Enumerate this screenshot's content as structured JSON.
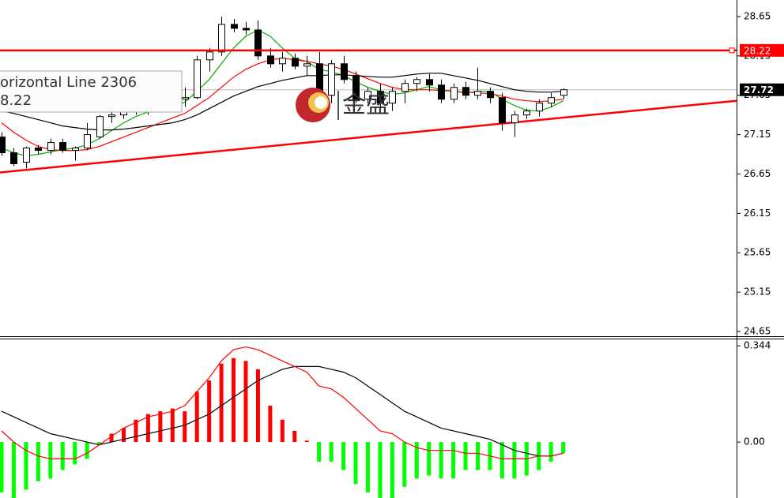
{
  "chart_data": [
    {
      "type": "candlestick",
      "xlim": [
        -0.13,
        60.2
      ],
      "ylim": [
        24.6,
        28.86
      ],
      "yticks": [
        24.65,
        25.15,
        25.65,
        26.15,
        26.65,
        27.15,
        27.65,
        28.15,
        28.65
      ],
      "open": [
        27.12,
        26.92,
        26.8,
        26.98,
        26.95,
        27.05,
        26.95,
        26.98,
        27.12,
        27.38,
        27.4,
        27.45,
        27.45,
        27.5,
        27.55,
        27.6,
        27.62,
        28.1,
        28.2,
        28.55,
        28.5,
        28.48,
        28.15,
        28.05,
        28.12,
        28.02,
        28.05,
        27.65,
        28.05,
        27.9,
        27.6,
        27.7,
        27.55,
        27.7,
        27.8,
        27.85,
        27.78,
        27.6,
        27.75,
        27.65,
        27.7,
        27.62,
        27.3,
        27.4,
        27.45,
        27.55,
        27.65
      ],
      "high": [
        27.18,
        26.98,
        27.0,
        27.02,
        27.1,
        27.1,
        27.0,
        27.3,
        27.4,
        27.5,
        27.55,
        27.6,
        27.55,
        27.6,
        27.65,
        27.75,
        28.15,
        28.25,
        28.65,
        28.62,
        28.58,
        28.6,
        28.25,
        28.2,
        28.18,
        28.15,
        28.2,
        28.1,
        28.15,
        27.95,
        27.75,
        27.8,
        27.75,
        27.85,
        27.88,
        27.92,
        27.85,
        27.8,
        27.82,
        28.0,
        27.75,
        27.68,
        27.45,
        27.48,
        27.6,
        27.68,
        27.74
      ],
      "low": [
        26.88,
        26.75,
        26.72,
        26.9,
        26.9,
        26.92,
        26.82,
        26.95,
        27.1,
        27.3,
        27.35,
        27.4,
        27.4,
        27.45,
        27.5,
        27.5,
        27.6,
        27.95,
        28.15,
        28.45,
        28.42,
        28.1,
        28.0,
        27.95,
        27.98,
        27.9,
        27.6,
        27.55,
        27.8,
        27.55,
        27.55,
        27.5,
        27.45,
        27.55,
        27.7,
        27.7,
        27.55,
        27.55,
        27.6,
        27.6,
        27.55,
        27.2,
        27.12,
        27.35,
        27.38,
        27.5,
        27.6
      ],
      "close": [
        26.92,
        26.78,
        26.98,
        26.95,
        27.05,
        26.95,
        26.98,
        27.15,
        27.38,
        27.4,
        27.45,
        27.48,
        27.5,
        27.55,
        27.6,
        27.62,
        28.1,
        28.2,
        28.55,
        28.5,
        28.48,
        28.15,
        28.05,
        28.12,
        28.02,
        28.05,
        27.65,
        28.05,
        27.85,
        27.6,
        27.7,
        27.55,
        27.7,
        27.8,
        27.85,
        27.78,
        27.6,
        27.75,
        27.65,
        27.7,
        27.62,
        27.3,
        27.4,
        27.45,
        27.55,
        27.62,
        27.72
      ],
      "series": [
        {
          "color": "#00b000",
          "values": [
            26.98,
            26.92,
            26.88,
            26.9,
            26.93,
            26.96,
            26.98,
            27.02,
            27.1,
            27.2,
            27.3,
            27.38,
            27.44,
            27.48,
            27.52,
            27.56,
            27.7,
            27.85,
            28.05,
            28.25,
            28.4,
            28.48,
            28.4,
            28.25,
            28.12,
            28.08,
            27.98,
            27.95,
            27.9,
            27.82,
            27.75,
            27.7,
            27.66,
            27.68,
            27.72,
            27.76,
            27.72,
            27.7,
            27.68,
            27.7,
            27.7,
            27.6,
            27.52,
            27.46,
            27.45,
            27.5,
            27.58
          ]
        },
        {
          "color": "#ff0000",
          "values": [
            27.3,
            27.18,
            27.08,
            27.0,
            26.96,
            26.95,
            26.95,
            26.96,
            27.0,
            27.06,
            27.12,
            27.18,
            27.24,
            27.3,
            27.36,
            27.42,
            27.52,
            27.62,
            27.75,
            27.88,
            27.98,
            28.05,
            28.1,
            28.12,
            28.1,
            28.08,
            28.05,
            28.02,
            27.98,
            27.92,
            27.86,
            27.8,
            27.75,
            27.72,
            27.72,
            27.72,
            27.71,
            27.7,
            27.69,
            27.68,
            27.67,
            27.64,
            27.6,
            27.58,
            27.57,
            27.58,
            27.6
          ]
        },
        {
          "color": "#000000",
          "values": [
            27.45,
            27.42,
            27.38,
            27.34,
            27.3,
            27.26,
            27.24,
            27.22,
            27.21,
            27.21,
            27.22,
            27.24,
            27.26,
            27.28,
            27.3,
            27.34,
            27.4,
            27.48,
            27.56,
            27.64,
            27.7,
            27.76,
            27.8,
            27.84,
            27.87,
            27.9,
            27.9,
            27.91,
            27.91,
            27.9,
            27.89,
            27.88,
            27.88,
            27.9,
            27.92,
            27.93,
            27.93,
            27.9,
            27.87,
            27.84,
            27.8,
            27.76,
            27.72,
            27.7,
            27.69,
            27.69,
            27.7
          ]
        }
      ],
      "hline": {
        "value": 28.22,
        "color": "#ff0000"
      },
      "trendline": {
        "x": [
          -0.13,
          60.2
        ],
        "y": [
          26.67,
          27.58
        ],
        "color": "#ff0000"
      },
      "last_price": 27.72,
      "tooltip": [
        "orizontal Line 2306",
        "8.22"
      ],
      "watermark": "金盛"
    },
    {
      "type": "macd",
      "xlim": [
        -0.13,
        60.2
      ],
      "ylim": [
        -0.2,
        0.367
      ],
      "yticks": [
        {
          "value": 0,
          "label": "0.00"
        },
        0.344
      ],
      "up_color": "#ff0000",
      "down_color": "#00ff00",
      "values": [
        -0.18,
        -0.2,
        -0.17,
        -0.14,
        -0.13,
        -0.1,
        -0.08,
        -0.06,
        -0.01,
        0.03,
        0.05,
        0.08,
        0.1,
        0.11,
        0.12,
        0.11,
        0.18,
        0.22,
        0.28,
        0.3,
        0.29,
        0.26,
        0.13,
        0.08,
        0.04,
        0.005,
        -0.07,
        -0.07,
        -0.1,
        -0.15,
        -0.18,
        -0.2,
        -0.2,
        -0.16,
        -0.13,
        -0.12,
        -0.13,
        -0.13,
        -0.1,
        -0.1,
        -0.1,
        -0.13,
        -0.13,
        -0.12,
        -0.1,
        -0.07,
        -0.04
      ],
      "series": [
        {
          "color": "#000000",
          "values": [
            0.11,
            0.09,
            0.07,
            0.05,
            0.03,
            0.02,
            0.01,
            0.0,
            -0.01,
            0.0,
            0.01,
            0.02,
            0.03,
            0.04,
            0.05,
            0.06,
            0.08,
            0.1,
            0.13,
            0.16,
            0.19,
            0.22,
            0.24,
            0.26,
            0.27,
            0.27,
            0.27,
            0.26,
            0.25,
            0.23,
            0.2,
            0.17,
            0.14,
            0.11,
            0.09,
            0.07,
            0.05,
            0.04,
            0.03,
            0.02,
            0.01,
            -0.01,
            -0.03,
            -0.04,
            -0.05,
            -0.05,
            -0.04
          ]
        },
        {
          "color": "#ff0000",
          "values": [
            0.04,
            0.0,
            -0.03,
            -0.05,
            -0.06,
            -0.06,
            -0.06,
            -0.04,
            -0.01,
            0.02,
            0.05,
            0.07,
            0.09,
            0.1,
            0.11,
            0.13,
            0.18,
            0.23,
            0.29,
            0.33,
            0.34,
            0.33,
            0.31,
            0.29,
            0.27,
            0.25,
            0.2,
            0.19,
            0.16,
            0.12,
            0.08,
            0.04,
            0.03,
            0.0,
            -0.02,
            -0.03,
            -0.03,
            -0.03,
            -0.04,
            -0.04,
            -0.05,
            -0.06,
            -0.06,
            -0.06,
            -0.05,
            -0.05,
            -0.04
          ]
        }
      ]
    }
  ]
}
